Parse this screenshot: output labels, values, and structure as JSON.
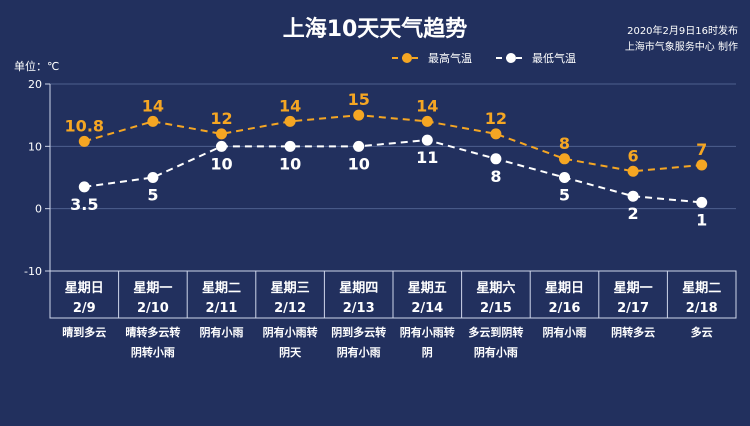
{
  "header": {
    "title": "上海10天天气趋势",
    "publish_time": "2020年2月9日16时发布",
    "publisher": "上海市气象服务中心 制作",
    "unit_label": "单位：℃"
  },
  "colors": {
    "background": "#22305e",
    "high_series": "#f5a623",
    "low_series": "#ffffff",
    "grid": "#4e5f8f"
  },
  "chart_data": {
    "type": "line",
    "title": "上海10天天气趋势",
    "ylabel": "单位：℃",
    "ylim": [
      -10,
      20
    ],
    "yticks": [
      -10,
      0,
      10,
      20
    ],
    "legend_position": "top-right",
    "days": [
      {
        "weekday": "星期日",
        "date": "2/9",
        "condition": [
          "晴到多云"
        ]
      },
      {
        "weekday": "星期一",
        "date": "2/10",
        "condition": [
          "晴转多云转",
          "阴转小雨"
        ]
      },
      {
        "weekday": "星期二",
        "date": "2/11",
        "condition": [
          "阴有小雨"
        ]
      },
      {
        "weekday": "星期三",
        "date": "2/12",
        "condition": [
          "阴有小雨转",
          "阴天"
        ]
      },
      {
        "weekday": "星期四",
        "date": "2/13",
        "condition": [
          "阴到多云转",
          "阴有小雨"
        ]
      },
      {
        "weekday": "星期五",
        "date": "2/14",
        "condition": [
          "阴有小雨转",
          "阴"
        ]
      },
      {
        "weekday": "星期六",
        "date": "2/15",
        "condition": [
          "多云到阴转",
          "阴有小雨"
        ]
      },
      {
        "weekday": "星期日",
        "date": "2/16",
        "condition": [
          "阴有小雨"
        ]
      },
      {
        "weekday": "星期一",
        "date": "2/17",
        "condition": [
          "阴转多云"
        ]
      },
      {
        "weekday": "星期二",
        "date": "2/18",
        "condition": [
          "多云"
        ]
      }
    ],
    "series": [
      {
        "name": "最高气温",
        "key": "high",
        "values": [
          10.8,
          14,
          12,
          14,
          15,
          14,
          12,
          8,
          6,
          7
        ],
        "labels": [
          "10.8",
          "14",
          "12",
          "14",
          "15",
          "14",
          "12",
          "8",
          "6",
          "7"
        ]
      },
      {
        "name": "最低气温",
        "key": "low",
        "values": [
          3.5,
          5,
          10,
          10,
          10,
          11,
          8,
          5,
          2,
          1
        ],
        "labels": [
          "3.5",
          "5",
          "10",
          "10",
          "10",
          "11",
          "8",
          "5",
          "2",
          "1"
        ]
      }
    ]
  }
}
